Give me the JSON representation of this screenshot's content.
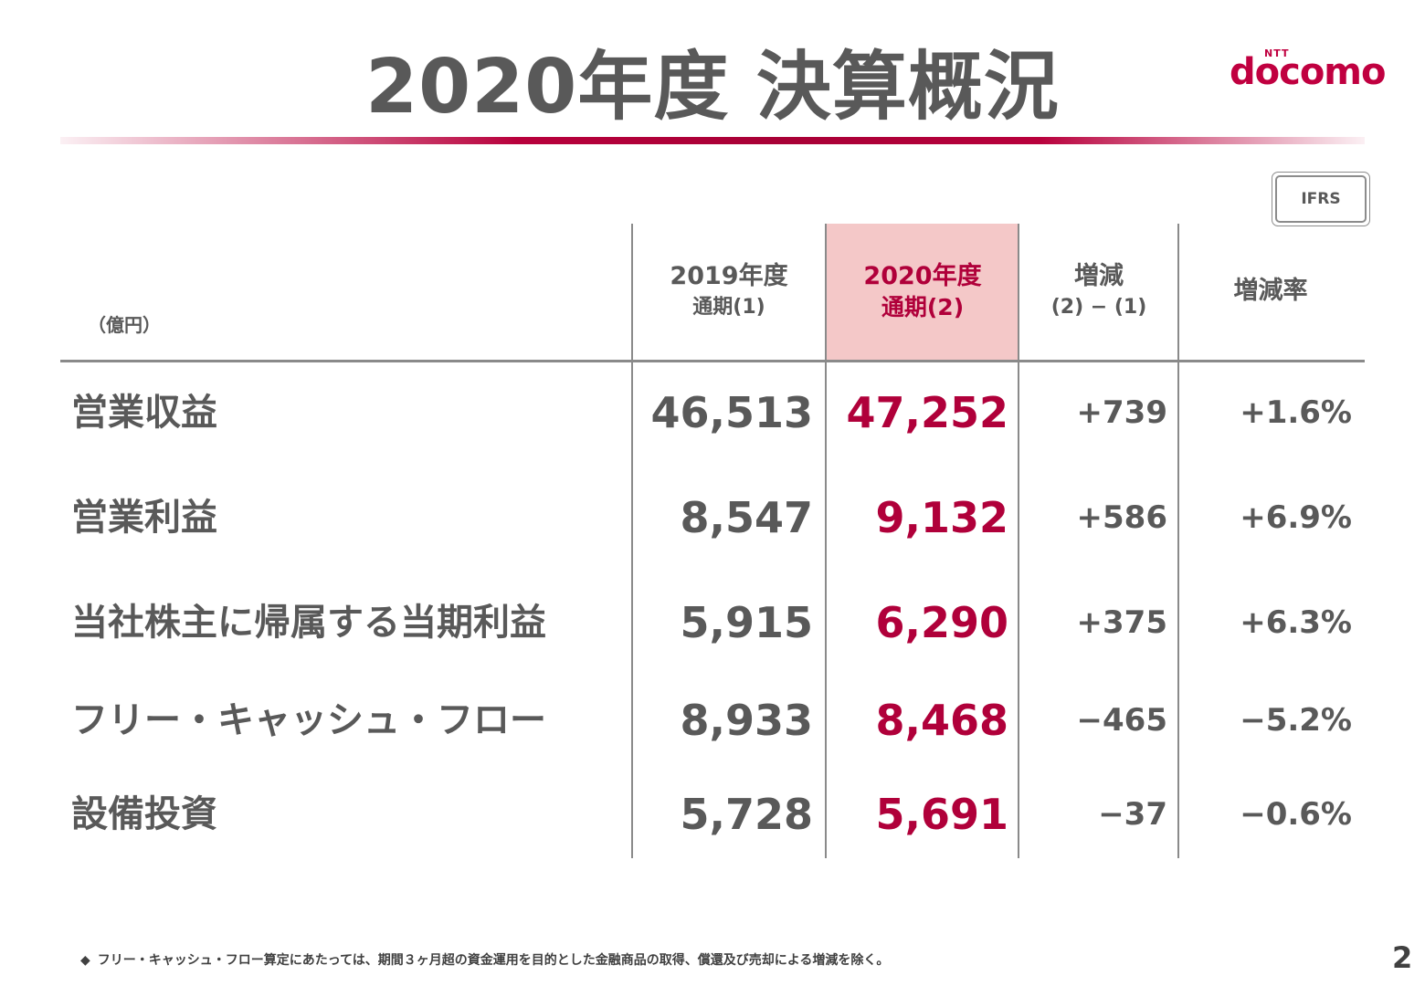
{
  "title": "2020年度 決算概況",
  "logo": {
    "small": "NTT",
    "word": "docomo"
  },
  "badge": "IFRS",
  "unit": "（億円）",
  "headers": {
    "prev": {
      "line1": "2019年度",
      "line2": "通期(1)"
    },
    "cur": {
      "line1": "2020年度",
      "line2": "通期(2)"
    },
    "diff": {
      "line1": "増減",
      "line2": "(2) − (1)"
    },
    "rate": {
      "line1": "増減率"
    }
  },
  "rows": [
    {
      "label": "営業収益",
      "prev": "46,513",
      "cur": "47,252",
      "diff": "+739",
      "rate": "+1.6%"
    },
    {
      "label": "営業利益",
      "prev": "8,547",
      "cur": "9,132",
      "diff": "+586",
      "rate": "+6.9%"
    },
    {
      "label": "当社株主に帰属する当期利益",
      "prev": "5,915",
      "cur": "6,290",
      "diff": "+375",
      "rate": "+6.3%"
    },
    {
      "label": "フリー・キャッシュ・フロー",
      "prev": "8,933",
      "cur": "8,468",
      "diff": "−465",
      "rate": "−5.2%"
    },
    {
      "label": "設備投資",
      "prev": "5,728",
      "cur": "5,691",
      "diff": "−37",
      "rate": "−0.6%"
    }
  ],
  "footnote": {
    "bullet": "◆",
    "text": "フリー・キャッシュ・フロー算定にあたっては、期間３ヶ月超の資金運用を目的とした金融商品の取得、償還及び売却による増減を除く。"
  },
  "page_number": "2",
  "colors": {
    "accent": "#b0003a",
    "highlight": "#f4c8c8",
    "text": "#595959"
  }
}
